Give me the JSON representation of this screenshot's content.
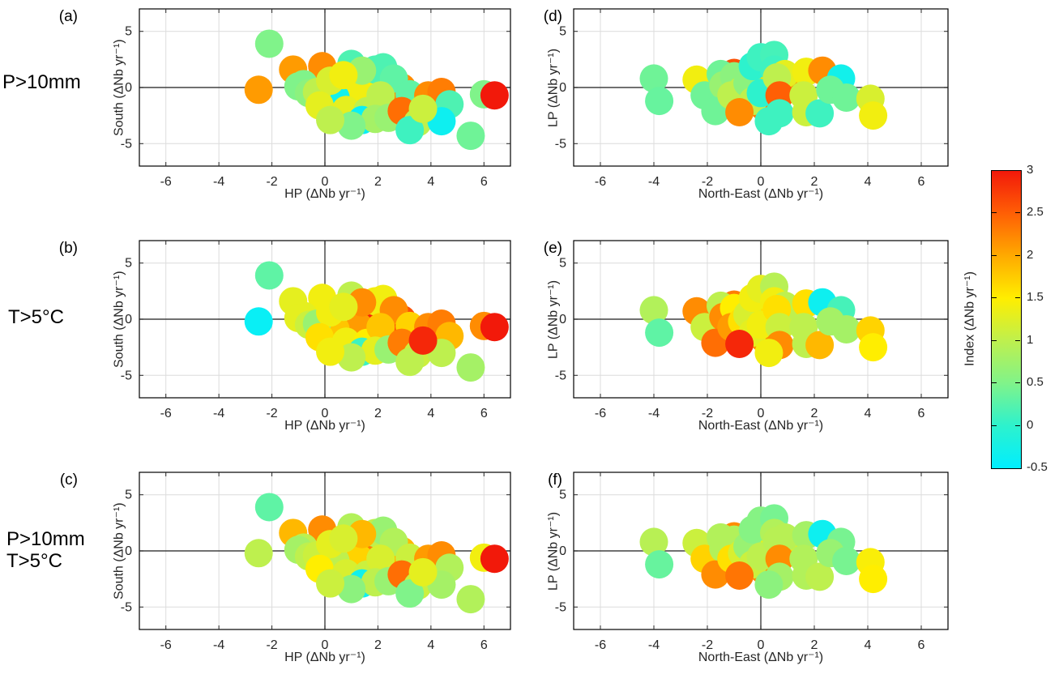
{
  "chart_data": {
    "type": "scatter",
    "grid": true,
    "xlim": [
      -7,
      7
    ],
    "ylim": [
      -7,
      7
    ],
    "x_ticks": [
      -6,
      -4,
      -2,
      0,
      2,
      4,
      6
    ],
    "y_ticks": [
      -5,
      0,
      5
    ],
    "marker_radius_px": 17.5,
    "colorbar": {
      "label": "Index (ΔNb yr⁻¹)",
      "min": -0.5,
      "max": 3,
      "ticks": [
        3,
        2.5,
        2,
        1.5,
        1,
        0.5,
        0,
        -0.5
      ]
    },
    "colormap_stops": [
      [
        -0.5,
        "#00eeff"
      ],
      [
        0.0,
        "#2df2cd"
      ],
      [
        0.5,
        "#80f38a"
      ],
      [
        1.0,
        "#bef04e"
      ],
      [
        1.5,
        "#ffee00"
      ],
      [
        2.0,
        "#ffaa00"
      ],
      [
        2.5,
        "#ff5f05"
      ],
      [
        3.0,
        "#f2190a"
      ]
    ],
    "rows": [
      {
        "line1": "P>10mm",
        "line2": ""
      },
      {
        "line1": "T>5°C",
        "line2": ""
      },
      {
        "line1": "P>10mm",
        "line2": "T>5°C"
      }
    ],
    "left_points": {
      "x": [
        1.8,
        1.3,
        0.4,
        2.9,
        -1.2,
        -0.1,
        -2.5,
        -2.1,
        1.0,
        1.9,
        2.2,
        1.4,
        2.6,
        -0.8,
        -1.0,
        -0.6,
        -0.3,
        0.2,
        0.7,
        -0.2,
        0.8,
        1.6,
        2.1,
        3.2,
        3.9,
        4.4,
        4.7,
        6.0,
        6.4,
        1.4,
        1.9,
        1.0,
        0.2,
        2.4,
        2.9,
        3.5,
        3.2,
        4.4,
        5.5,
        3.7
      ],
      "y": [
        0.1,
        -0.7,
        -0.9,
        0.0,
        1.6,
        1.9,
        -0.2,
        3.9,
        2.1,
        1.6,
        1.8,
        1.5,
        0.8,
        0.3,
        0.1,
        -0.5,
        -0.4,
        0.6,
        1.1,
        -1.6,
        -2.0,
        -2.1,
        -0.7,
        -0.6,
        -0.7,
        -0.4,
        -1.5,
        -0.6,
        -0.7,
        -2.9,
        -2.8,
        -3.4,
        -2.9,
        -2.7,
        -2.1,
        -3.1,
        -3.8,
        -3.0,
        -4.3,
        -1.9
      ]
    },
    "right_points": {
      "x": [
        -1.7,
        -1.0,
        1.0,
        0.1,
        0.2,
        -4.0,
        -3.8,
        -2.4,
        -2.1,
        -1.5,
        -1.4,
        -1.7,
        -1.0,
        -1.1,
        -0.7,
        -0.5,
        -0.3,
        -0.8,
        -0.3,
        0.0,
        0.5,
        0.5,
        0.9,
        0.0,
        0.6,
        0.7,
        0.7,
        0.3,
        1.7,
        2.3,
        3.0,
        1.6,
        1.7,
        2.2,
        2.6,
        3.2,
        4.1,
        4.2
      ],
      "y": [
        -1.2,
        1.3,
        0.7,
        -1.7,
        0.3,
        0.8,
        -1.2,
        0.7,
        -0.7,
        1.2,
        0.2,
        -2.1,
        1.0,
        -0.7,
        -0.2,
        0.4,
        -1.2,
        -2.2,
        1.9,
        2.7,
        2.9,
        1.6,
        1.2,
        -0.5,
        0.9,
        -0.7,
        -2.3,
        -3.0,
        1.4,
        1.5,
        0.8,
        -0.7,
        -2.2,
        -2.3,
        -0.2,
        -0.9,
        -1.0,
        -2.5
      ]
    },
    "panels": [
      {
        "letter": "(a)",
        "row": 0,
        "side": "left",
        "xlabel": "HP (ΔNb yr⁻¹)",
        "ylabel": "South (ΔNb yr⁻¹)",
        "indices": [
          1.5,
          1.4,
          -0.3,
          2.2,
          2.1,
          2.2,
          2.1,
          0.5,
          0.2,
          0.2,
          0.2,
          0.7,
          0.3,
          0.5,
          0.5,
          0.6,
          1.0,
          1.2,
          1.4,
          1.3,
          1.3,
          1.0,
          1.0,
          0.3,
          2.2,
          2.3,
          0.2,
          0.5,
          3.0,
          -0.4,
          0.8,
          0.5,
          1.0,
          0.7,
          2.4,
          1.0,
          0.1,
          -0.35,
          0.4,
          1.1
        ]
      },
      {
        "letter": "(d)",
        "row": 0,
        "side": "right",
        "xlabel": "North-East (ΔNb yr⁻¹)",
        "ylabel": "LP (ΔNb yr⁻¹)",
        "indices": [
          3.0,
          2.6,
          2.2,
          2.3,
          1.6,
          0.4,
          0.35,
          1.4,
          0.4,
          0.4,
          0.7,
          0.4,
          0.6,
          1.0,
          1.0,
          0.6,
          1.0,
          2.2,
          0.0,
          0.1,
          0.15,
          0.1,
          1.3,
          0.0,
          1.0,
          2.5,
          0.1,
          0.1,
          1.4,
          2.2,
          -0.3,
          1.1,
          1.1,
          0.1,
          0.4,
          0.4,
          1.2,
          1.4
        ]
      },
      {
        "letter": "(b)",
        "row": 1,
        "side": "left",
        "xlabel": "HP (ΔNb yr⁻¹)",
        "ylabel": "South (ΔNb yr⁻¹)",
        "indices": [
          2.9,
          2.1,
          1.8,
          2.6,
          1.3,
          1.4,
          -0.4,
          0.3,
          1.0,
          1.4,
          1.4,
          2.2,
          2.2,
          1.3,
          1.3,
          1.1,
          0.7,
          1.4,
          1.3,
          1.6,
          1.4,
          1.5,
          1.8,
          1.7,
          2.2,
          2.3,
          1.9,
          2.2,
          3.0,
          0.1,
          1.3,
          1.0,
          1.4,
          0.7,
          2.3,
          1.1,
          1.0,
          1.0,
          0.8,
          2.9
        ]
      },
      {
        "letter": "(e)",
        "row": 1,
        "side": "right",
        "xlabel": "North-East (ΔNb yr⁻¹)",
        "ylabel": "LP (ΔNb yr⁻¹)",
        "indices": [
          2.9,
          2.3,
          1.0,
          2.2,
          1.6,
          0.9,
          0.3,
          2.2,
          1.1,
          1.0,
          2.2,
          2.4,
          1.5,
          2.1,
          1.6,
          1.2,
          1.3,
          2.9,
          1.4,
          1.3,
          0.95,
          1.4,
          1.0,
          1.4,
          1.6,
          1.1,
          2.2,
          1.4,
          1.6,
          -0.35,
          0.15,
          1.0,
          1.0,
          1.9,
          0.8,
          0.8,
          1.7,
          1.5
        ]
      },
      {
        "letter": "(c)",
        "row": 2,
        "side": "left",
        "xlabel": "HP (ΔNb yr⁻¹)",
        "ylabel": "South (ΔNb yr⁻¹)",
        "indices": [
          2.3,
          1.7,
          1.0,
          1.9,
          1.9,
          2.2,
          1.0,
          0.3,
          0.9,
          1.0,
          0.7,
          1.9,
          0.9,
          1.0,
          0.8,
          1.0,
          1.1,
          1.3,
          1.2,
          1.5,
          1.2,
          1.1,
          1.2,
          1.1,
          2.1,
          2.2,
          0.9,
          1.4,
          3.0,
          -0.3,
          1.0,
          0.6,
          1.1,
          0.7,
          2.4,
          1.1,
          0.5,
          0.8,
          0.9,
          1.3
        ]
      },
      {
        "letter": "(f)",
        "row": 2,
        "side": "right",
        "xlabel": "North-East (ΔNb yr⁻¹)",
        "ylabel": "LP (ΔNb yr⁻¹)",
        "indices": [
          2.9,
          2.2,
          1.4,
          2.2,
          1.3,
          0.95,
          0.35,
          1.1,
          1.7,
          0.9,
          0.9,
          2.2,
          0.9,
          1.6,
          1.2,
          0.7,
          1.1,
          2.35,
          0.55,
          0.55,
          0.45,
          0.9,
          0.95,
          1.0,
          0.95,
          2.2,
          0.8,
          0.6,
          0.8,
          -0.35,
          0.45,
          0.9,
          0.9,
          1.0,
          0.7,
          0.45,
          1.45,
          1.5
        ]
      }
    ]
  }
}
